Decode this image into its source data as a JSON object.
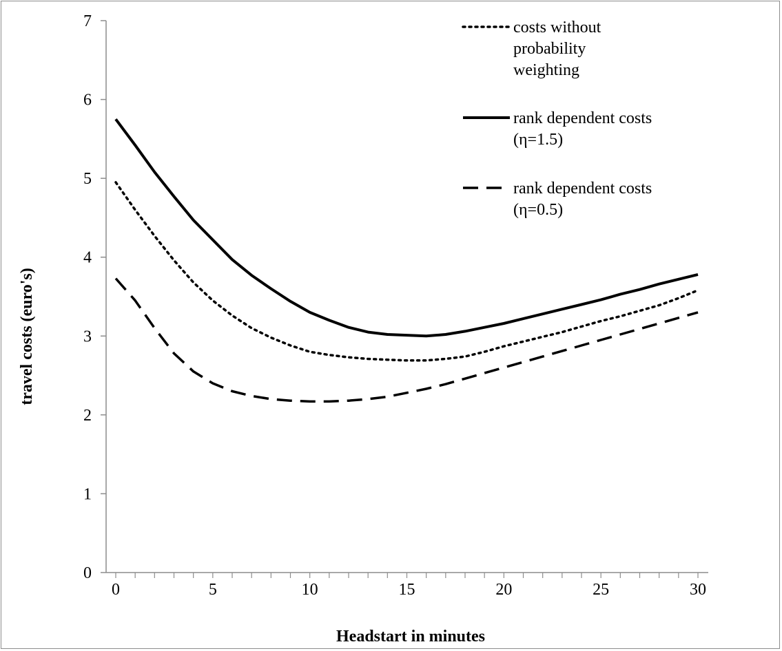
{
  "chart_data": {
    "type": "line",
    "title": "",
    "xlabel": "Headstart in minutes",
    "ylabel": "travel costs (euro's)",
    "xlim": [
      0,
      30
    ],
    "ylim": [
      0,
      7
    ],
    "xticks": [
      0,
      5,
      10,
      15,
      20,
      25,
      30
    ],
    "yticks": [
      0,
      1,
      2,
      3,
      4,
      5,
      6,
      7
    ],
    "grid": false,
    "legend_position": "top-right",
    "x": [
      0,
      1,
      2,
      3,
      4,
      5,
      6,
      7,
      8,
      9,
      10,
      11,
      12,
      13,
      14,
      15,
      16,
      17,
      18,
      19,
      20,
      21,
      22,
      23,
      24,
      25,
      26,
      27,
      28,
      29,
      30
    ],
    "series": [
      {
        "name": "costs without probability weighting",
        "style": "dotted",
        "color": "#000000",
        "values": [
          4.95,
          4.6,
          4.27,
          3.96,
          3.68,
          3.45,
          3.26,
          3.1,
          2.98,
          2.88,
          2.8,
          2.76,
          2.73,
          2.71,
          2.7,
          2.69,
          2.69,
          2.71,
          2.74,
          2.8,
          2.87,
          2.93,
          2.99,
          3.05,
          3.12,
          3.19,
          3.25,
          3.32,
          3.39,
          3.48,
          3.58
        ]
      },
      {
        "name": "rank dependent costs (η=1.5)",
        "style": "solid",
        "color": "#000000",
        "values": [
          5.75,
          5.42,
          5.08,
          4.77,
          4.47,
          4.22,
          3.97,
          3.77,
          3.6,
          3.44,
          3.3,
          3.2,
          3.11,
          3.05,
          3.02,
          3.01,
          3.0,
          3.02,
          3.06,
          3.11,
          3.16,
          3.22,
          3.28,
          3.34,
          3.4,
          3.46,
          3.53,
          3.59,
          3.66,
          3.72,
          3.78
        ]
      },
      {
        "name": "rank dependent costs (η=0.5)",
        "style": "dashed",
        "color": "#000000",
        "values": [
          3.73,
          3.45,
          3.1,
          2.78,
          2.55,
          2.4,
          2.3,
          2.24,
          2.2,
          2.18,
          2.17,
          2.17,
          2.18,
          2.2,
          2.23,
          2.28,
          2.33,
          2.39,
          2.46,
          2.53,
          2.6,
          2.67,
          2.74,
          2.81,
          2.88,
          2.95,
          3.02,
          3.09,
          3.16,
          3.23,
          3.3
        ]
      }
    ],
    "legend": [
      {
        "style": "dotted",
        "lines": [
          "costs without",
          "probability",
          "weighting"
        ]
      },
      {
        "style": "solid",
        "lines": [
          "rank dependent costs",
          "(η=1.5)"
        ]
      },
      {
        "style": "dashed",
        "lines": [
          "rank dependent costs",
          "(η=0.5)"
        ]
      }
    ]
  }
}
